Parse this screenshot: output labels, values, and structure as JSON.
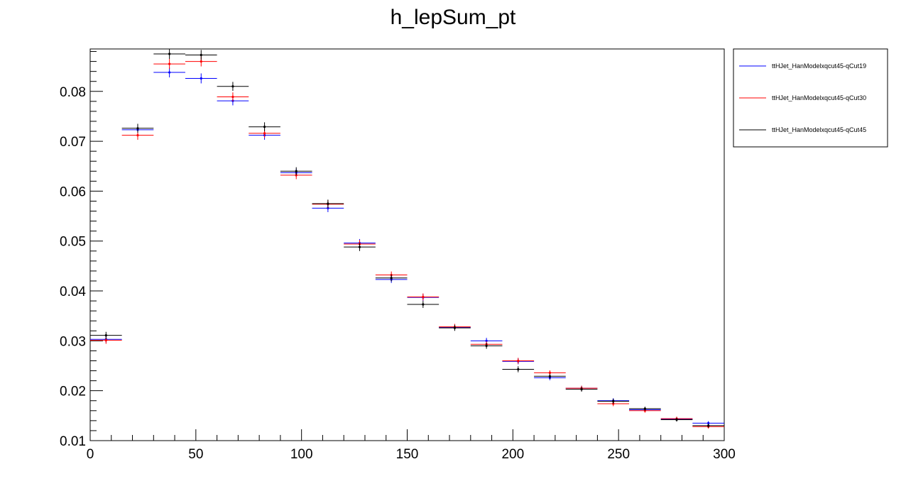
{
  "chart_data": {
    "type": "scatter",
    "title": "h_lepSum_pt",
    "xlabel": "",
    "ylabel": "",
    "xlim": [
      0,
      300
    ],
    "ylim": [
      0.01,
      0.0885
    ],
    "grid": false,
    "legend_position": "right",
    "bin_width": 15,
    "x": [
      7.5,
      22.5,
      37.5,
      52.5,
      67.5,
      82.5,
      97.5,
      112.5,
      127.5,
      142.5,
      157.5,
      172.5,
      187.5,
      202.5,
      217.5,
      232.5,
      247.5,
      262.5,
      277.5,
      292.5
    ],
    "x_ticks": [
      0,
      50,
      100,
      150,
      200,
      250,
      300
    ],
    "x_tick_labels": [
      "0",
      "50",
      "100",
      "150",
      "200",
      "250",
      "300"
    ],
    "y_ticks": [
      0.01,
      0.02,
      0.03,
      0.04,
      0.05,
      0.06,
      0.07,
      0.08
    ],
    "y_tick_labels": [
      "0.01",
      "0.02",
      "0.03",
      "0.04",
      "0.05",
      "0.06",
      "0.07",
      "0.08"
    ],
    "series": [
      {
        "name": "ttHJet_HanModelxqcut45-qCut19",
        "color": "#0000ff",
        "values": [
          0.0303,
          0.0723,
          0.0838,
          0.0826,
          0.0781,
          0.0712,
          0.0637,
          0.0566,
          0.0496,
          0.0423,
          0.0387,
          0.0327,
          0.03,
          0.0259,
          0.0226,
          0.0205,
          0.018,
          0.0162,
          0.0143,
          0.0135
        ],
        "errors": [
          0.0007,
          0.0009,
          0.001,
          0.001,
          0.0009,
          0.0009,
          0.0008,
          0.0008,
          0.0008,
          0.0007,
          0.0007,
          0.0006,
          0.0006,
          0.0006,
          0.0005,
          0.0005,
          0.0005,
          0.0004,
          0.0004,
          0.0004
        ]
      },
      {
        "name": "ttHJet_HanModelxqcut45-qCut30",
        "color": "#ff0000",
        "values": [
          0.0301,
          0.0712,
          0.0855,
          0.086,
          0.0789,
          0.0716,
          0.0632,
          0.0574,
          0.0494,
          0.0432,
          0.0388,
          0.0328,
          0.0293,
          0.026,
          0.0236,
          0.0205,
          0.0174,
          0.016,
          0.0144,
          0.0128
        ]
      },
      {
        "name": "ttHJet_HanModelxqcut45-qCut45",
        "color": "#000000",
        "values": [
          0.0311,
          0.0726,
          0.0875,
          0.0873,
          0.081,
          0.0729,
          0.064,
          0.0575,
          0.0488,
          0.0426,
          0.0373,
          0.0326,
          0.029,
          0.0243,
          0.0229,
          0.0203,
          0.0179,
          0.0164,
          0.0142,
          0.013
        ]
      }
    ]
  }
}
